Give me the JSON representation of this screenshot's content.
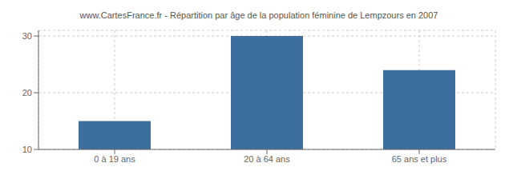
{
  "chart_data": {
    "type": "bar",
    "title": "www.CartesFrance.fr - Répartition par âge de la population féminine de Lempzours en 2007",
    "categories": [
      "0 à 19 ans",
      "20 à 64 ans",
      "65 ans et plus"
    ],
    "values": [
      15,
      30,
      24
    ],
    "color": "#3d6f9e",
    "ylim": [
      10,
      31
    ],
    "yticks": [
      10,
      20,
      30
    ],
    "grid": true
  }
}
